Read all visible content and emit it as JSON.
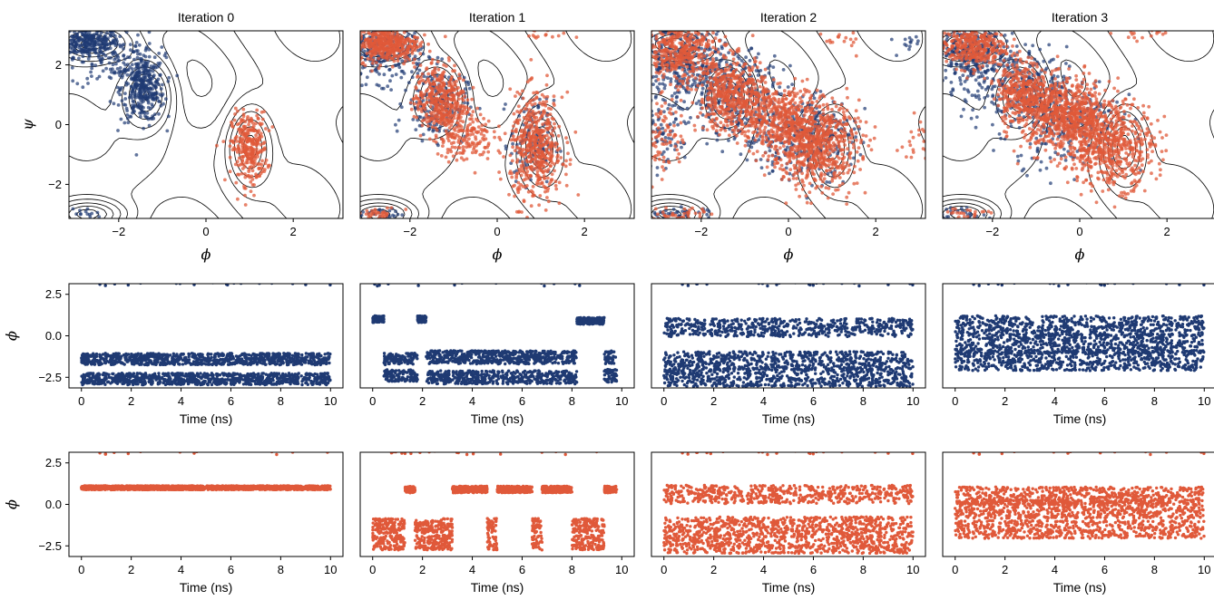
{
  "figure": {
    "colors": {
      "blue": "#1f3a73",
      "orange": "#e0593a",
      "contour": "#000000",
      "frame": "#000000"
    }
  },
  "chart_data": [
    {
      "type": "scatter",
      "panel": "top",
      "title": "Iteration 0",
      "xlabel": "ϕ",
      "ylabel": "ψ",
      "xlim": [
        -3.14,
        3.14
      ],
      "ylim": [
        -3.14,
        3.14
      ],
      "xticks": [
        "−2",
        "0",
        "2"
      ],
      "yticks": [
        "2",
        "0",
        "−2"
      ],
      "background": "free-energy contour lines",
      "series": [
        {
          "color": "blue",
          "clusters": [
            {
              "x": -2.7,
              "y": 2.75,
              "sx": 0.35,
              "sy": 0.25,
              "n": 300
            },
            {
              "x": -1.45,
              "y": 1.2,
              "sx": 0.25,
              "sy": 0.55,
              "n": 350
            },
            {
              "x": -2.1,
              "y": 2.2,
              "sx": 0.5,
              "sy": 0.5,
              "n": 120
            },
            {
              "x": -2.8,
              "y": -3.0,
              "sx": 0.2,
              "sy": 0.12,
              "n": 15
            }
          ]
        },
        {
          "color": "orange",
          "clusters": [
            {
              "x": 1.0,
              "y": -0.8,
              "sx": 0.2,
              "sy": 0.6,
              "n": 300
            }
          ]
        }
      ]
    },
    {
      "type": "scatter",
      "panel": "top",
      "title": "Iteration 1",
      "xlabel": "ϕ",
      "xlim": [
        -3.14,
        3.14
      ],
      "ylim": [
        -3.14,
        3.14
      ],
      "xticks": [
        "−2",
        "0",
        "2"
      ],
      "series": [
        {
          "color": "blue",
          "clusters": [
            {
              "x": -2.6,
              "y": 2.4,
              "sx": 0.45,
              "sy": 0.5,
              "n": 250
            },
            {
              "x": -1.4,
              "y": 0.7,
              "sx": 0.35,
              "sy": 0.6,
              "n": 180
            },
            {
              "x": 0.8,
              "y": -0.6,
              "sx": 0.25,
              "sy": 0.7,
              "n": 120
            },
            {
              "x": -2.7,
              "y": -3.0,
              "sx": 0.3,
              "sy": 0.1,
              "n": 30
            }
          ]
        },
        {
          "color": "orange",
          "clusters": [
            {
              "x": -2.5,
              "y": 2.7,
              "sx": 0.35,
              "sy": 0.3,
              "n": 400
            },
            {
              "x": -1.3,
              "y": 0.8,
              "sx": 0.3,
              "sy": 0.6,
              "n": 400
            },
            {
              "x": -0.7,
              "y": -0.4,
              "sx": 0.3,
              "sy": 0.4,
              "n": 150
            },
            {
              "x": 0.9,
              "y": -0.8,
              "sx": 0.3,
              "sy": 0.9,
              "n": 500
            },
            {
              "x": -2.8,
              "y": -3.0,
              "sx": 0.3,
              "sy": 0.12,
              "n": 40
            },
            {
              "x": 1.0,
              "y": 3.0,
              "sx": 0.3,
              "sy": 0.1,
              "n": 15
            }
          ]
        }
      ]
    },
    {
      "type": "scatter",
      "panel": "top",
      "title": "Iteration 2",
      "xlabel": "ϕ",
      "xlim": [
        -3.14,
        3.14
      ],
      "ylim": [
        -3.14,
        3.14
      ],
      "xticks": [
        "−2",
        "0",
        "2"
      ],
      "series": [
        {
          "color": "blue",
          "clusters": [
            {
              "x": -2.5,
              "y": 2.0,
              "sx": 0.5,
              "sy": 0.8,
              "n": 350
            },
            {
              "x": -1.2,
              "y": 1.0,
              "sx": 0.5,
              "sy": 0.7,
              "n": 300
            },
            {
              "x": 0.3,
              "y": -0.4,
              "sx": 0.6,
              "sy": 0.7,
              "n": 300
            },
            {
              "x": -2.9,
              "y": -0.5,
              "sx": 0.25,
              "sy": 0.5,
              "n": 60
            },
            {
              "x": -2.5,
              "y": -3.0,
              "sx": 0.4,
              "sy": 0.12,
              "n": 40
            },
            {
              "x": 2.8,
              "y": 2.8,
              "sx": 0.2,
              "sy": 0.2,
              "n": 15
            }
          ]
        },
        {
          "color": "orange",
          "clusters": [
            {
              "x": -2.5,
              "y": 2.5,
              "sx": 0.5,
              "sy": 0.5,
              "n": 450
            },
            {
              "x": -1.3,
              "y": 1.0,
              "sx": 0.4,
              "sy": 0.6,
              "n": 450
            },
            {
              "x": -0.3,
              "y": 0.3,
              "sx": 0.5,
              "sy": 0.5,
              "n": 400
            },
            {
              "x": 0.6,
              "y": -0.7,
              "sx": 0.5,
              "sy": 0.7,
              "n": 700
            },
            {
              "x": -2.9,
              "y": -0.3,
              "sx": 0.25,
              "sy": 0.7,
              "n": 100
            },
            {
              "x": -2.5,
              "y": -3.0,
              "sx": 0.4,
              "sy": 0.12,
              "n": 40
            },
            {
              "x": 2.9,
              "y": -0.6,
              "sx": 0.15,
              "sy": 0.4,
              "n": 20
            },
            {
              "x": 1.2,
              "y": 2.9,
              "sx": 0.2,
              "sy": 0.15,
              "n": 15
            }
          ]
        }
      ]
    },
    {
      "type": "scatter",
      "panel": "top",
      "title": "Iteration 3",
      "xlabel": "ϕ",
      "xlim": [
        -3.14,
        3.14
      ],
      "ylim": [
        -3.14,
        3.14
      ],
      "xticks": [
        "−2",
        "0",
        "2"
      ],
      "series": [
        {
          "color": "blue",
          "clusters": [
            {
              "x": -2.5,
              "y": 2.4,
              "sx": 0.5,
              "sy": 0.5,
              "n": 300
            },
            {
              "x": -1.5,
              "y": 1.2,
              "sx": 0.6,
              "sy": 0.7,
              "n": 250
            },
            {
              "x": -0.3,
              "y": 0.2,
              "sx": 0.6,
              "sy": 0.8,
              "n": 250
            },
            {
              "x": -2.8,
              "y": -3.0,
              "sx": 0.35,
              "sy": 0.12,
              "n": 30
            }
          ]
        },
        {
          "color": "orange",
          "clusters": [
            {
              "x": -2.5,
              "y": 2.6,
              "sx": 0.4,
              "sy": 0.35,
              "n": 350
            },
            {
              "x": -1.3,
              "y": 1.1,
              "sx": 0.3,
              "sy": 0.5,
              "n": 350
            },
            {
              "x": -0.3,
              "y": 0.3,
              "sx": 0.5,
              "sy": 0.6,
              "n": 700
            },
            {
              "x": 0.7,
              "y": -0.7,
              "sx": 0.5,
              "sy": 0.7,
              "n": 600
            },
            {
              "x": -2.8,
              "y": -3.0,
              "sx": 0.35,
              "sy": 0.12,
              "n": 30
            },
            {
              "x": 1.5,
              "y": 3.0,
              "sx": 0.4,
              "sy": 0.1,
              "n": 15
            }
          ]
        }
      ]
    },
    {
      "type": "scatter",
      "panel": "middle",
      "color": "blue",
      "xlabel": "Time (ns)",
      "ylabel": "ϕ",
      "xlim": [
        -0.5,
        10.5
      ],
      "ylim": [
        -3.14,
        3.14
      ],
      "xticks": [
        "0",
        "2",
        "4",
        "6",
        "8",
        "10"
      ],
      "yticks": [
        "2.5",
        "0.0",
        "−2.5"
      ],
      "segments": [
        {
          "t0": 0,
          "t1": 10,
          "bands": [
            -2.6,
            -1.4
          ],
          "spread": 0.35
        }
      ]
    },
    {
      "type": "scatter",
      "panel": "middle",
      "color": "blue",
      "xlabel": "Time (ns)",
      "xlim": [
        -0.5,
        10.5
      ],
      "ylim": [
        -3.14,
        3.14
      ],
      "xticks": [
        "0",
        "2",
        "4",
        "6",
        "8",
        "10"
      ],
      "segments": [
        {
          "t0": 0.0,
          "t1": 0.45,
          "bands": [
            1.0
          ],
          "spread": 0.2
        },
        {
          "t0": 0.45,
          "t1": 1.8,
          "bands": [
            -1.4,
            -2.4
          ],
          "spread": 0.35
        },
        {
          "t0": 1.8,
          "t1": 2.15,
          "bands": [
            1.0
          ],
          "spread": 0.2
        },
        {
          "t0": 2.15,
          "t1": 8.2,
          "bands": [
            -1.3,
            -2.5
          ],
          "spread": 0.4
        },
        {
          "t0": 8.2,
          "t1": 9.3,
          "bands": [
            0.9
          ],
          "spread": 0.2
        },
        {
          "t0": 9.3,
          "t1": 9.8,
          "bands": [
            -1.3,
            -2.4
          ],
          "spread": 0.4
        }
      ]
    },
    {
      "type": "scatter",
      "panel": "middle",
      "color": "blue",
      "xlabel": "Time (ns)",
      "xlim": [
        -0.5,
        10.5
      ],
      "ylim": [
        -3.14,
        3.14
      ],
      "xticks": [
        "0",
        "2",
        "4",
        "6",
        "8",
        "10"
      ],
      "segments": [
        {
          "t0": 0,
          "t1": 10,
          "bands": [
            0.5,
            -1.5,
            -2.5
          ],
          "spread": 0.55
        }
      ]
    },
    {
      "type": "scatter",
      "panel": "middle",
      "color": "blue",
      "xlabel": "Time (ns)",
      "xlim": [
        -0.5,
        10.5
      ],
      "ylim": [
        -3.14,
        3.14
      ],
      "xticks": [
        "0",
        "2",
        "4",
        "6",
        "8",
        "10"
      ],
      "segments": [
        {
          "t0": 0,
          "t1": 10,
          "bands": [
            0.6,
            -0.5,
            -1.5
          ],
          "spread": 0.6
        }
      ]
    },
    {
      "type": "scatter",
      "panel": "bottom",
      "color": "orange",
      "xlabel": "Time (ns)",
      "ylabel": "ϕ",
      "xlim": [
        -0.5,
        10.5
      ],
      "ylim": [
        -3.14,
        3.14
      ],
      "xticks": [
        "0",
        "2",
        "4",
        "6",
        "8",
        "10"
      ],
      "yticks": [
        "2.5",
        "0.0",
        "−2.5"
      ],
      "segments": [
        {
          "t0": 0,
          "t1": 10,
          "bands": [
            1.0
          ],
          "spread": 0.12
        }
      ]
    },
    {
      "type": "scatter",
      "panel": "bottom",
      "color": "orange",
      "xlabel": "Time (ns)",
      "xlim": [
        -0.5,
        10.5
      ],
      "ylim": [
        -3.14,
        3.14
      ],
      "xticks": [
        "0",
        "2",
        "4",
        "6",
        "8",
        "10"
      ],
      "segments": [
        {
          "t0": 0.0,
          "t1": 1.3,
          "bands": [
            -1.3,
            -2.3
          ],
          "spread": 0.45
        },
        {
          "t0": 1.3,
          "t1": 1.7,
          "bands": [
            0.9
          ],
          "spread": 0.2
        },
        {
          "t0": 1.7,
          "t1": 3.2,
          "bands": [
            -1.3,
            -2.3
          ],
          "spread": 0.45
        },
        {
          "t0": 3.2,
          "t1": 4.6,
          "bands": [
            0.9
          ],
          "spread": 0.2
        },
        {
          "t0": 4.6,
          "t1": 5.0,
          "bands": [
            -1.3,
            -2.3
          ],
          "spread": 0.45
        },
        {
          "t0": 5.0,
          "t1": 6.4,
          "bands": [
            0.9
          ],
          "spread": 0.2
        },
        {
          "t0": 6.4,
          "t1": 6.8,
          "bands": [
            -1.3,
            -2.3
          ],
          "spread": 0.45
        },
        {
          "t0": 6.8,
          "t1": 8.0,
          "bands": [
            0.9
          ],
          "spread": 0.2
        },
        {
          "t0": 8.0,
          "t1": 9.3,
          "bands": [
            -1.3,
            -2.3
          ],
          "spread": 0.45
        },
        {
          "t0": 9.3,
          "t1": 9.8,
          "bands": [
            0.9
          ],
          "spread": 0.2
        }
      ]
    },
    {
      "type": "scatter",
      "panel": "bottom",
      "color": "orange",
      "xlabel": "Time (ns)",
      "xlim": [
        -0.5,
        10.5
      ],
      "ylim": [
        -3.14,
        3.14
      ],
      "xticks": [
        "0",
        "2",
        "4",
        "6",
        "8",
        "10"
      ],
      "segments": [
        {
          "t0": 0,
          "t1": 10,
          "bands": [
            0.6,
            -1.3,
            -2.4
          ],
          "spread": 0.55
        }
      ]
    },
    {
      "type": "scatter",
      "panel": "bottom",
      "color": "orange",
      "xlabel": "Time (ns)",
      "xlim": [
        -0.5,
        10.5
      ],
      "ylim": [
        -3.14,
        3.14
      ],
      "xticks": [
        "0",
        "2",
        "4",
        "6",
        "8",
        "10"
      ],
      "segments": [
        {
          "t0": 0,
          "t1": 10,
          "bands": [
            0.5,
            -0.3,
            -1.5
          ],
          "spread": 0.55
        }
      ]
    }
  ]
}
